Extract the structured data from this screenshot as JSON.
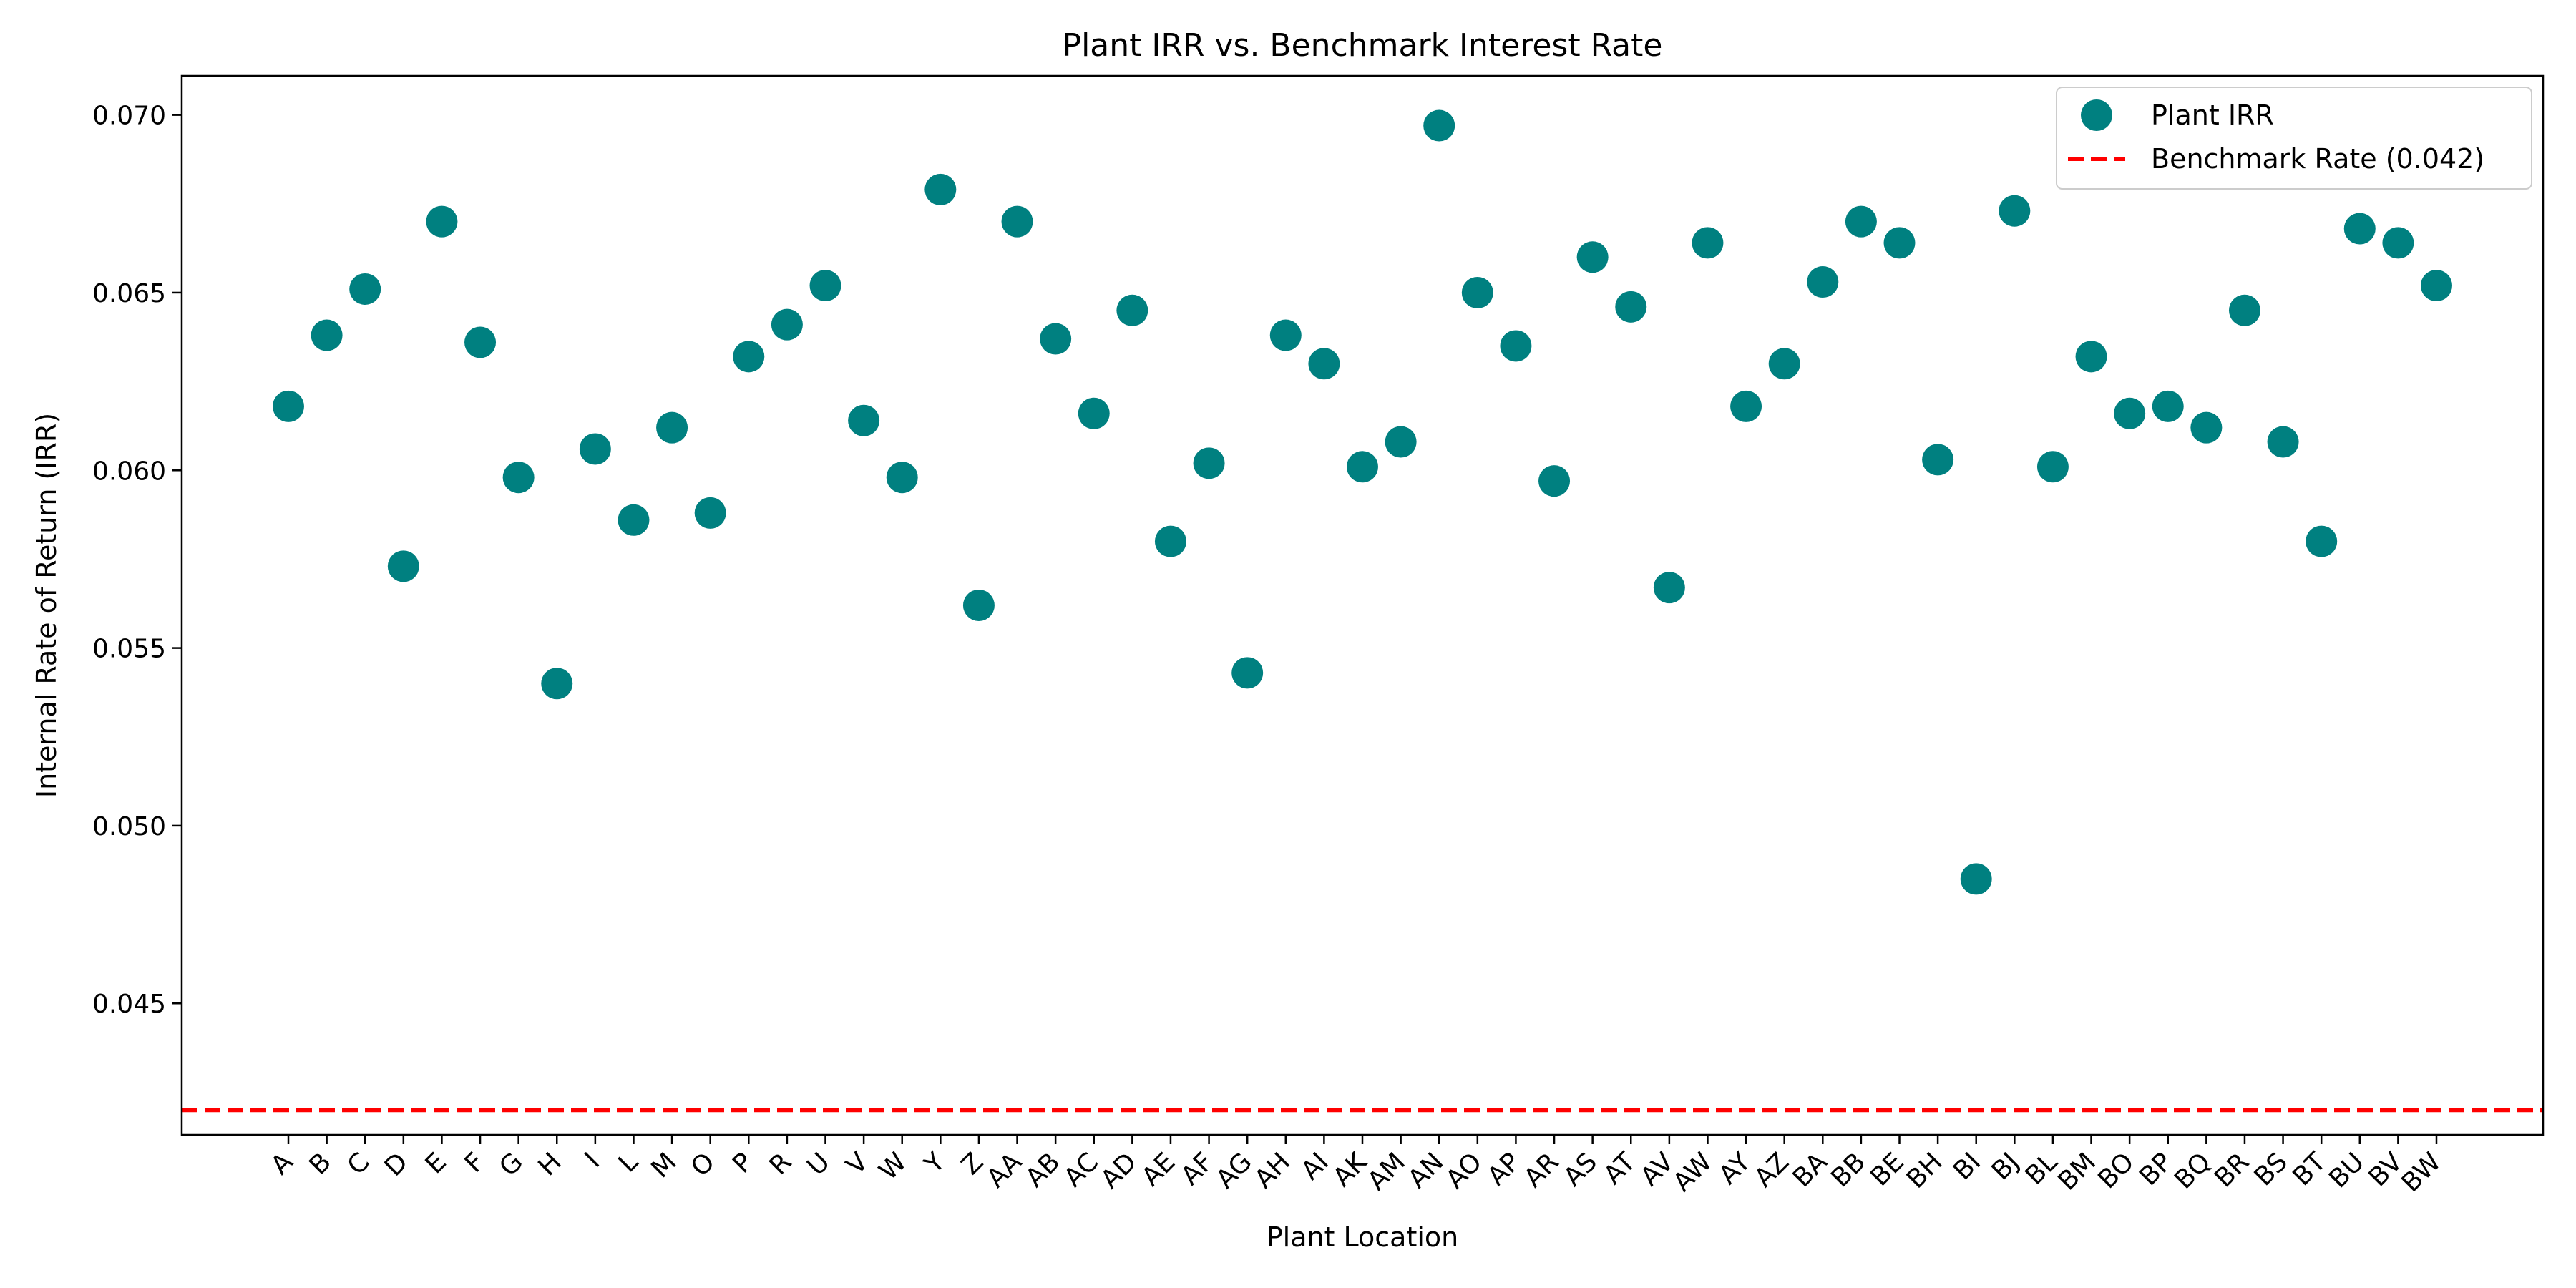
{
  "chart_data": {
    "type": "scatter",
    "title": "Plant IRR vs. Benchmark Interest Rate",
    "xlabel": "Plant Location",
    "ylabel": "Internal Rate of Return (IRR)",
    "ylim": [
      0.0413,
      0.0711
    ],
    "yticks": [
      "0.045",
      "0.050",
      "0.055",
      "0.060",
      "0.065",
      "0.070"
    ],
    "grid": false,
    "legend_position": "top-right",
    "categories": [
      "A",
      "B",
      "C",
      "D",
      "E",
      "F",
      "G",
      "H",
      "I",
      "L",
      "M",
      "O",
      "P",
      "R",
      "U",
      "V",
      "W",
      "Y",
      "Z",
      "AA",
      "AB",
      "AC",
      "AD",
      "AE",
      "AF",
      "AG",
      "AH",
      "AI",
      "AK",
      "AM",
      "AN",
      "AO",
      "AP",
      "AR",
      "AS",
      "AT",
      "AV",
      "AW",
      "AY",
      "AZ",
      "BA",
      "BB",
      "BE",
      "BH",
      "BI",
      "BJ",
      "BL",
      "BM",
      "BO",
      "BP",
      "BQ",
      "BR",
      "BS",
      "BT",
      "BU",
      "BV",
      "BW"
    ],
    "series": [
      {
        "name": "Plant IRR",
        "kind": "scatter",
        "color": "#008080",
        "values": [
          0.0618,
          0.0638,
          0.0651,
          0.0573,
          0.067,
          0.0636,
          0.0598,
          0.054,
          0.0606,
          0.0586,
          0.0612,
          0.0588,
          0.0632,
          0.0641,
          0.0652,
          0.0614,
          0.0598,
          0.0679,
          0.0562,
          0.067,
          0.0637,
          0.0616,
          0.0645,
          0.058,
          0.0602,
          0.0543,
          0.0638,
          0.063,
          0.0601,
          0.0608,
          0.0697,
          0.065,
          0.0635,
          0.0597,
          0.066,
          0.0646,
          0.0567,
          0.0664,
          0.0618,
          0.063,
          0.0653,
          0.067,
          0.0664,
          0.0603,
          0.0485,
          0.0673,
          0.0601,
          0.0632,
          0.0616,
          0.0618,
          0.0612,
          0.0645,
          0.0608,
          0.058,
          0.0668,
          0.0664,
          0.0652
        ]
      },
      {
        "name": "Benchmark Rate (0.042)",
        "kind": "hline",
        "color": "#ff0000",
        "value": 0.042
      }
    ]
  }
}
